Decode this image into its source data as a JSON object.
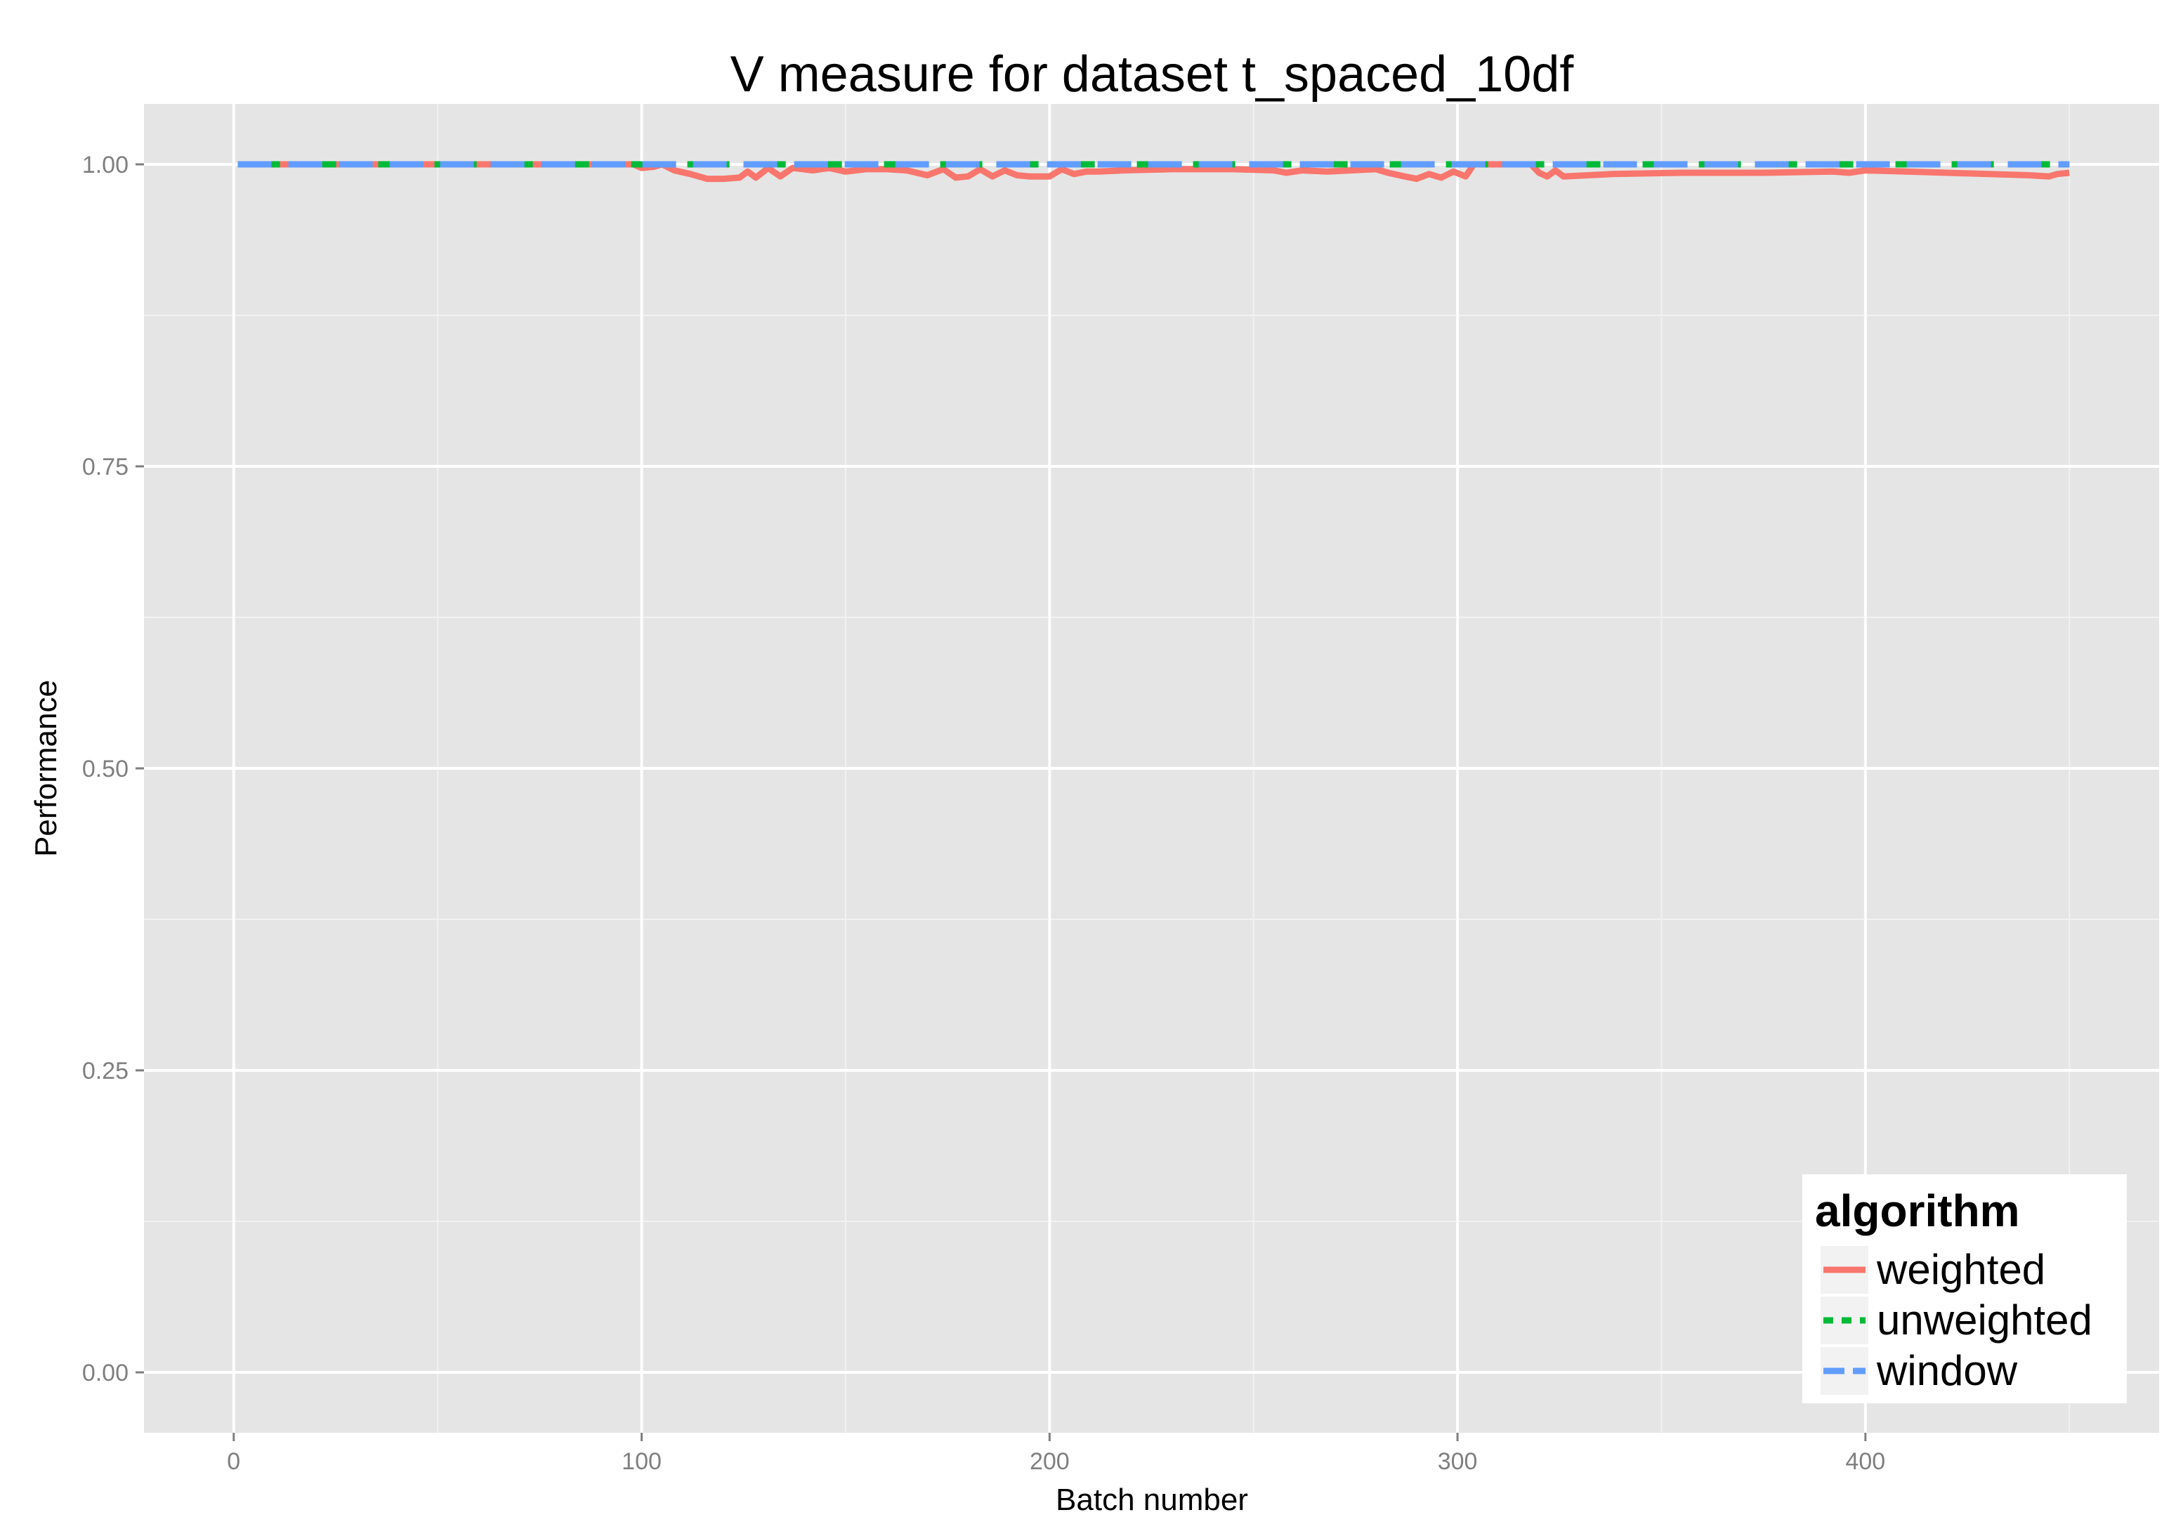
{
  "chart_data": {
    "type": "line",
    "title": "V measure for dataset t_spaced_10df",
    "xlabel": "Batch number",
    "ylabel": "Performance",
    "xlim": [
      -22,
      472
    ],
    "ylim": [
      -0.05,
      1.05
    ],
    "x_ticks": [
      0,
      100,
      200,
      300,
      400
    ],
    "x_tick_labels": [
      "0",
      "100",
      "200",
      "300",
      "400"
    ],
    "y_ticks": [
      0.0,
      0.25,
      0.5,
      0.75,
      1.0
    ],
    "y_tick_labels": [
      "0.00",
      "0.25",
      "0.50",
      "0.75",
      "1.00"
    ],
    "grid": true,
    "legend": {
      "title": "algorithm",
      "position": "bottom-right"
    },
    "series": [
      {
        "name": "weighted",
        "color": "#F8766D",
        "dash": "solid",
        "points": [
          [
            1,
            1.0
          ],
          [
            98,
            1.0
          ],
          [
            100,
            0.997
          ],
          [
            103,
            0.998
          ],
          [
            105,
            1.0
          ],
          [
            108,
            0.995
          ],
          [
            112,
            0.992
          ],
          [
            116,
            0.988
          ],
          [
            120,
            0.988
          ],
          [
            124,
            0.989
          ],
          [
            126,
            0.994
          ],
          [
            128,
            0.989
          ],
          [
            131,
            0.997
          ],
          [
            134,
            0.99
          ],
          [
            137,
            0.997
          ],
          [
            142,
            0.995
          ],
          [
            146,
            0.997
          ],
          [
            150,
            0.994
          ],
          [
            155,
            0.996
          ],
          [
            160,
            0.996
          ],
          [
            165,
            0.995
          ],
          [
            170,
            0.991
          ],
          [
            174,
            0.996
          ],
          [
            177,
            0.989
          ],
          [
            180,
            0.99
          ],
          [
            183,
            0.996
          ],
          [
            186,
            0.99
          ],
          [
            189,
            0.995
          ],
          [
            192,
            0.991
          ],
          [
            195,
            0.99
          ],
          [
            200,
            0.99
          ],
          [
            203,
            0.996
          ],
          [
            206,
            0.992
          ],
          [
            209,
            0.994
          ],
          [
            212,
            0.994
          ],
          [
            218,
            0.995
          ],
          [
            230,
            0.996
          ],
          [
            245,
            0.996
          ],
          [
            255,
            0.995
          ],
          [
            258,
            0.993
          ],
          [
            262,
            0.995
          ],
          [
            268,
            0.994
          ],
          [
            280,
            0.996
          ],
          [
            283,
            0.993
          ],
          [
            287,
            0.99
          ],
          [
            290,
            0.988
          ],
          [
            293,
            0.992
          ],
          [
            296,
            0.989
          ],
          [
            299,
            0.994
          ],
          [
            302,
            0.99
          ],
          [
            304,
            1.0
          ],
          [
            318,
            1.0
          ],
          [
            320,
            0.993
          ],
          [
            322,
            0.99
          ],
          [
            324,
            0.995
          ],
          [
            326,
            0.99
          ],
          [
            332,
            0.991
          ],
          [
            338,
            0.992
          ],
          [
            355,
            0.993
          ],
          [
            375,
            0.993
          ],
          [
            392,
            0.994
          ],
          [
            396,
            0.993
          ],
          [
            400,
            0.995
          ],
          [
            410,
            0.994
          ],
          [
            420,
            0.993
          ],
          [
            430,
            0.992
          ],
          [
            440,
            0.991
          ],
          [
            445,
            0.99
          ],
          [
            447,
            0.992
          ],
          [
            450,
            0.993
          ]
        ]
      },
      {
        "name": "unweighted",
        "color": "#00BA38",
        "dash": "dashed",
        "points": [
          [
            1,
            1.0
          ],
          [
            450,
            1.0
          ]
        ]
      },
      {
        "name": "window",
        "color": "#619CFF",
        "dash": "longdash",
        "points": [
          [
            1,
            1.0
          ],
          [
            450,
            1.0
          ]
        ]
      }
    ]
  }
}
